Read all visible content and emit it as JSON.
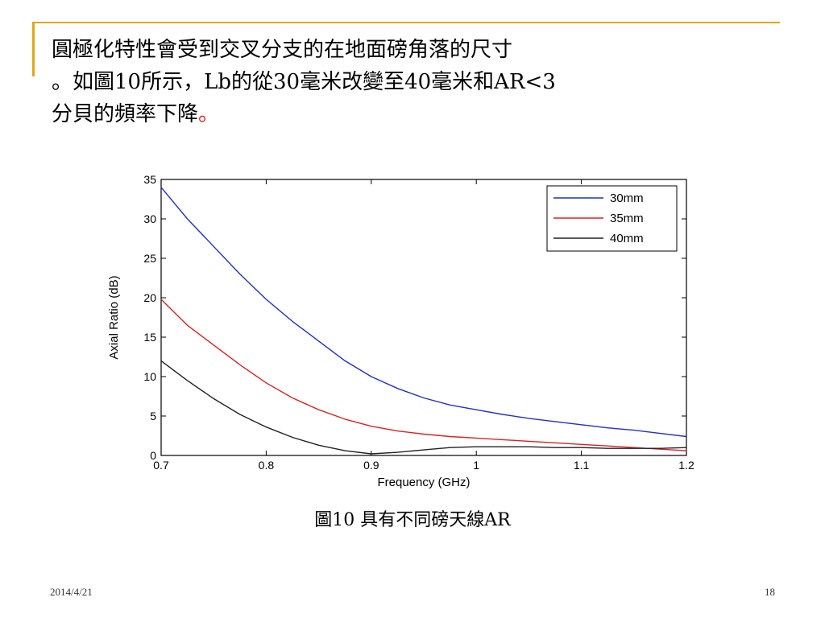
{
  "slide": {
    "title_lines": [
      "圓極化特性會受到交叉分支的在地面磅角落的尺寸",
      "。如圖10所示，Lb的從30毫米改變至40毫米和AR<3",
      "分貝的頻率下降"
    ],
    "title_end_mark": "。",
    "caption": "圖10  具有不同磅天線AR",
    "footer_date": "2014/4/21",
    "page_number": "18",
    "accent_color": "#e3a51a",
    "mark_color": "#e02020"
  },
  "chart_data": {
    "type": "line",
    "title": "",
    "xlabel": "Frequency (GHz)",
    "ylabel": "Axial Ratio (dB)",
    "xlim": [
      0.7,
      1.2
    ],
    "ylim": [
      0,
      35
    ],
    "x_ticks": [
      "0.7",
      "0.8",
      "0.9",
      "1",
      "1.1",
      "1.2"
    ],
    "y_ticks": [
      "0",
      "5",
      "10",
      "15",
      "20",
      "25",
      "30",
      "35"
    ],
    "x": [
      0.7,
      0.725,
      0.75,
      0.775,
      0.8,
      0.825,
      0.85,
      0.875,
      0.9,
      0.925,
      0.95,
      0.975,
      1.0,
      1.025,
      1.05,
      1.075,
      1.1,
      1.125,
      1.15,
      1.175,
      1.2
    ],
    "series": [
      {
        "name": "30mm",
        "color": "#1f2fd0",
        "values": [
          34,
          30,
          26.5,
          23,
          19.8,
          17,
          14.5,
          12,
          10,
          8.5,
          7.3,
          6.4,
          5.8,
          5.2,
          4.7,
          4.3,
          3.9,
          3.5,
          3.2,
          2.8,
          2.4
        ]
      },
      {
        "name": "35mm",
        "color": "#e02020",
        "values": [
          19.8,
          16.5,
          14,
          11.5,
          9.2,
          7.3,
          5.8,
          4.6,
          3.7,
          3.1,
          2.7,
          2.4,
          2.2,
          2.0,
          1.8,
          1.6,
          1.4,
          1.2,
          1.0,
          0.8,
          0.6
        ]
      },
      {
        "name": "40mm",
        "color": "#222222",
        "values": [
          12,
          9.5,
          7.2,
          5.2,
          3.6,
          2.3,
          1.3,
          0.6,
          0.2,
          0.4,
          0.7,
          1.0,
          1.1,
          1.1,
          1.1,
          1.0,
          1.0,
          0.9,
          0.9,
          0.9,
          1.0
        ]
      }
    ],
    "legend_position": "top-right",
    "grid": false
  }
}
